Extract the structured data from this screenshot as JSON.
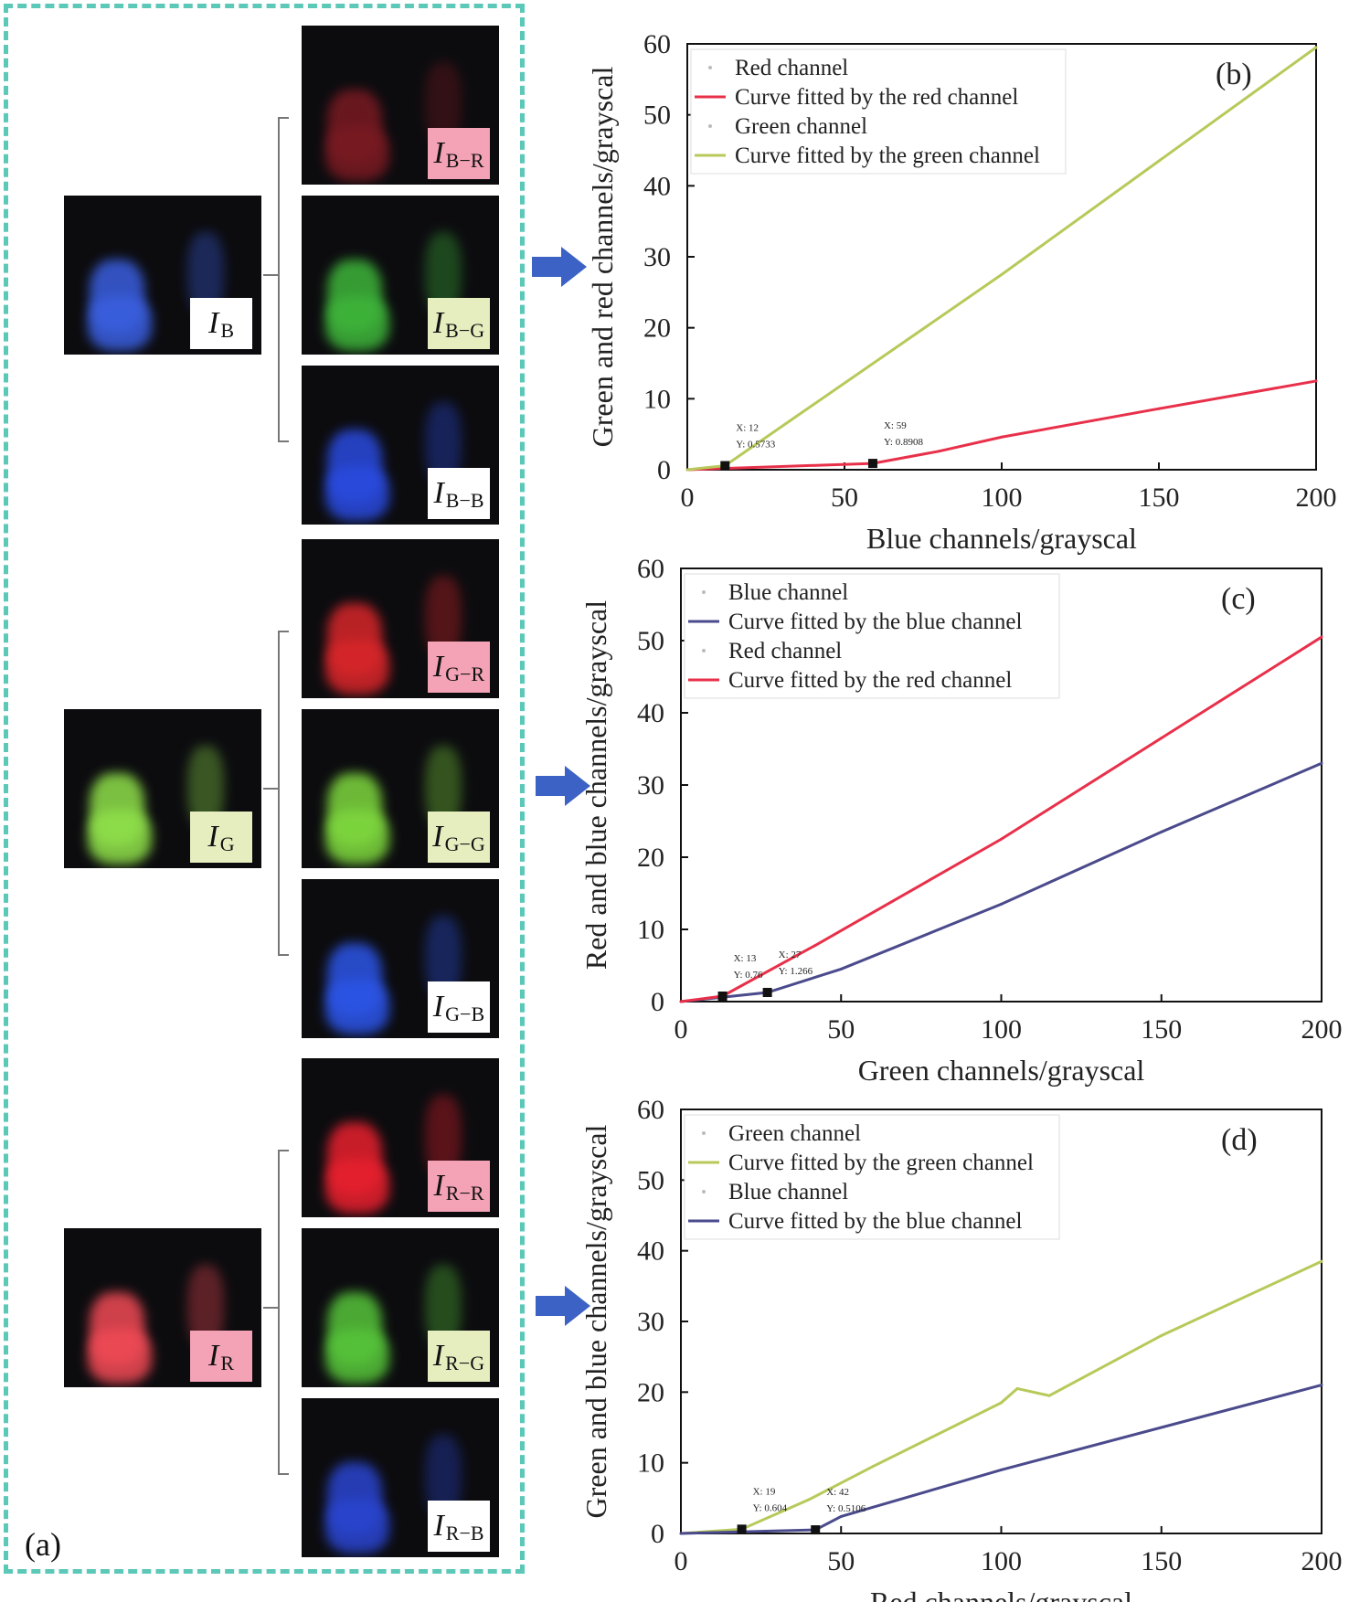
{
  "panel_a": {
    "tag": "(a)",
    "groups": [
      {
        "source": {
          "label": "I",
          "sub": "B",
          "label_bg": "#ffffff",
          "color": "#3a5fe0"
        },
        "outputs": [
          {
            "label": "I",
            "sub": "B−R",
            "label_bg": "#f4a3b6",
            "color": "#7a1a22"
          },
          {
            "label": "I",
            "sub": "B−G",
            "label_bg": "#e6eec0",
            "color": "#3eb53a"
          },
          {
            "label": "I",
            "sub": "B−B",
            "label_bg": "#ffffff",
            "color": "#2a4be0"
          }
        ]
      },
      {
        "source": {
          "label": "I",
          "sub": "G",
          "label_bg": "#e6eec0",
          "color": "#8fe04a"
        },
        "outputs": [
          {
            "label": "I",
            "sub": "G−R",
            "label_bg": "#f4a3b6",
            "color": "#d8262a"
          },
          {
            "label": "I",
            "sub": "G−G",
            "label_bg": "#e6eec0",
            "color": "#7ed83e"
          },
          {
            "label": "I",
            "sub": "G−B",
            "label_bg": "#ffffff",
            "color": "#2c55e8"
          }
        ]
      },
      {
        "source": {
          "label": "I",
          "sub": "R",
          "label_bg": "#f4a3b6",
          "color": "#f04a55"
        },
        "outputs": [
          {
            "label": "I",
            "sub": "R−R",
            "label_bg": "#f4a3b6",
            "color": "#e8202e"
          },
          {
            "label": "I",
            "sub": "R−G",
            "label_bg": "#e6eec0",
            "color": "#56c43a"
          },
          {
            "label": "I",
            "sub": "R−B",
            "label_bg": "#ffffff",
            "color": "#2a45d0"
          }
        ]
      }
    ]
  },
  "colors": {
    "red_curve": "#e8304a",
    "green_curve": "#b8c95a",
    "blue_curve": "#4a4a8c",
    "arrow": "#3b62c4"
  },
  "chart_data": [
    {
      "type": "line",
      "panel_tag": "(b)",
      "xlabel": "Blue channels/grayscal",
      "ylabel": "Green and red channels/grayscal",
      "xlim": [
        0,
        200
      ],
      "ylim": [
        0,
        60
      ],
      "xticks": [
        0,
        50,
        100,
        150,
        200
      ],
      "yticks": [
        0,
        10,
        20,
        30,
        40,
        50,
        60
      ],
      "legend": [
        "Red channel",
        "Curve fitted by the red channel",
        "Green channel",
        "Curve fitted by the green channel"
      ],
      "legend_placement": "top-left",
      "series": [
        {
          "name": "Curve fitted by the red channel",
          "color": "#e8304a",
          "x": [
            0,
            59,
            80,
            100,
            150,
            200
          ],
          "y": [
            0,
            0.89,
            2.6,
            4.6,
            8.6,
            12.5
          ]
        },
        {
          "name": "Curve fitted by the green channel",
          "color": "#b8c95a",
          "x": [
            0,
            12,
            33,
            100,
            150,
            200
          ],
          "y": [
            0,
            0.57,
            7,
            27.5,
            43.5,
            59.5
          ]
        }
      ],
      "annotations": [
        {
          "x": 12,
          "y": 0.5733,
          "text_x": "X: 12",
          "text_y": "Y: 0.5733"
        },
        {
          "x": 59,
          "y": 0.8908,
          "text_x": "X: 59",
          "text_y": "Y: 0.8908"
        }
      ]
    },
    {
      "type": "line",
      "panel_tag": "(c)",
      "xlabel": "Green channels/grayscal",
      "ylabel": "Red and blue channels/grayscal",
      "xlim": [
        0,
        200
      ],
      "ylim": [
        0,
        60
      ],
      "xticks": [
        0,
        50,
        100,
        150,
        200
      ],
      "yticks": [
        0,
        10,
        20,
        30,
        40,
        50,
        60
      ],
      "legend": [
        "Blue channel",
        "Curve fitted by the blue channel",
        "Red channel",
        "Curve fitted by the red channel"
      ],
      "legend_placement": "top-left",
      "series": [
        {
          "name": "Curve fitted by the blue channel",
          "color": "#4a4a8c",
          "x": [
            0,
            27,
            50,
            100,
            150,
            200
          ],
          "y": [
            0,
            1.266,
            4.5,
            13.5,
            23.5,
            33
          ]
        },
        {
          "name": "Curve fitted by the red channel",
          "color": "#e8304a",
          "x": [
            0,
            13,
            42,
            100,
            150,
            200
          ],
          "y": [
            0,
            0.76,
            7.8,
            22.5,
            36.5,
            50.5
          ]
        }
      ],
      "annotations": [
        {
          "x": 13,
          "y": 0.76,
          "text_x": "X: 13",
          "text_y": "Y: 0.76"
        },
        {
          "x": 27,
          "y": 1.266,
          "text_x": "X: 27",
          "text_y": "Y: 1.266"
        }
      ]
    },
    {
      "type": "line",
      "panel_tag": "(d)",
      "xlabel": "Red channels/grayscal",
      "ylabel": "Green and blue channels/grayscal",
      "xlim": [
        0,
        200
      ],
      "ylim": [
        0,
        60
      ],
      "xticks": [
        0,
        50,
        100,
        150,
        200
      ],
      "yticks": [
        0,
        10,
        20,
        30,
        40,
        50,
        60
      ],
      "legend": [
        "Green channel",
        "Curve fitted by the green channel",
        "Blue channel",
        "Curve fitted by the blue channel"
      ],
      "legend_placement": "top-left",
      "series": [
        {
          "name": "Curve fitted by the green channel",
          "color": "#b8c95a",
          "x": [
            0,
            19,
            40,
            60,
            100,
            105,
            115,
            150,
            200
          ],
          "y": [
            0,
            0.604,
            4.8,
            9.5,
            18.5,
            20.5,
            19.5,
            28,
            38.5
          ]
        },
        {
          "name": "Curve fitted by the blue channel",
          "color": "#4a4a8c",
          "x": [
            0,
            42,
            50,
            100,
            150,
            200
          ],
          "y": [
            0,
            0.5106,
            2.4,
            9,
            15,
            21
          ]
        }
      ],
      "annotations": [
        {
          "x": 19,
          "y": 0.604,
          "text_x": "X: 19",
          "text_y": "Y: 0.604"
        },
        {
          "x": 42,
          "y": 0.5106,
          "text_x": "X: 42",
          "text_y": "Y: 0.5106"
        }
      ]
    }
  ]
}
